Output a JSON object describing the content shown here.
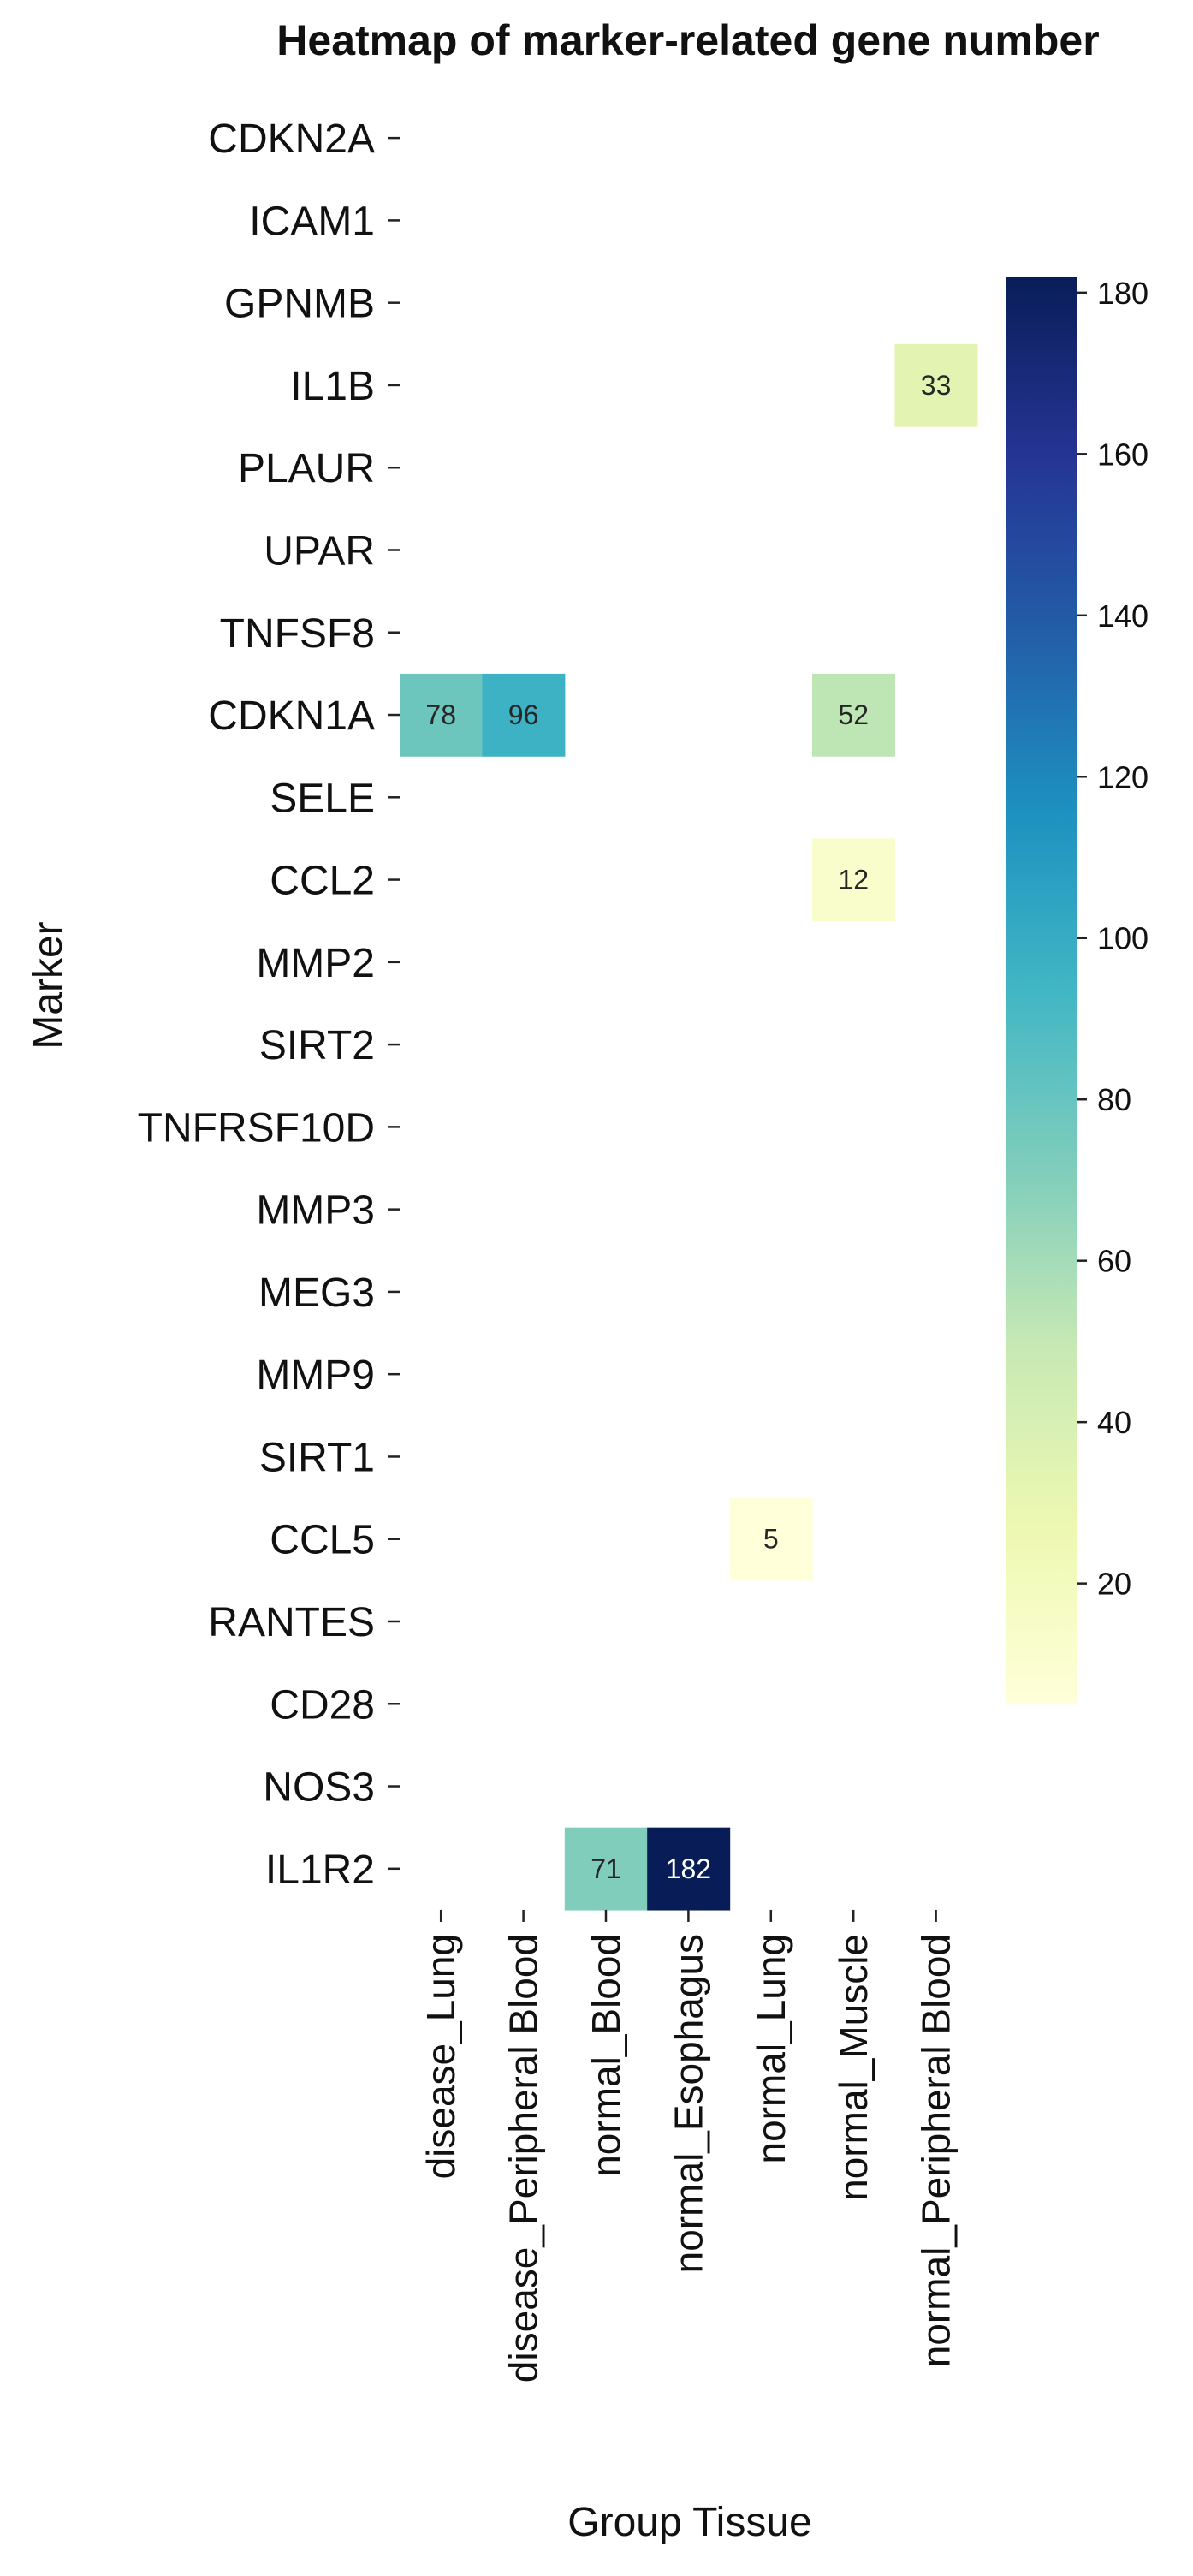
{
  "chart_data": {
    "type": "heatmap",
    "title": "Heatmap of marker-related gene number",
    "xlabel": "Group Tissue",
    "ylabel": "Marker",
    "x_categories": [
      "disease_Lung",
      "disease_Peripheral Blood",
      "normal_Blood",
      "normal_Esophagus",
      "normal_Lung",
      "normal_Muscle",
      "normal_Peripheral Blood"
    ],
    "y_categories": [
      "CDKN2A",
      "ICAM1",
      "GPNMB",
      "IL1B",
      "PLAUR",
      "UPAR",
      "TNFSF8",
      "CDKN1A",
      "SELE",
      "CCL2",
      "MMP2",
      "SIRT2",
      "TNFRSF10D",
      "MMP3",
      "MEG3",
      "MMP9",
      "SIRT1",
      "CCL5",
      "RANTES",
      "CD28",
      "NOS3",
      "IL1R2"
    ],
    "values": [
      [
        null,
        null,
        null,
        null,
        null,
        null,
        null
      ],
      [
        null,
        null,
        null,
        null,
        null,
        null,
        null
      ],
      [
        null,
        null,
        null,
        null,
        null,
        null,
        null
      ],
      [
        null,
        null,
        null,
        null,
        null,
        null,
        33
      ],
      [
        null,
        null,
        null,
        null,
        null,
        null,
        null
      ],
      [
        null,
        null,
        null,
        null,
        null,
        null,
        null
      ],
      [
        null,
        null,
        null,
        null,
        null,
        null,
        null
      ],
      [
        78,
        96,
        null,
        null,
        null,
        52,
        null
      ],
      [
        null,
        null,
        null,
        null,
        null,
        null,
        null
      ],
      [
        null,
        null,
        null,
        null,
        null,
        12,
        null
      ],
      [
        null,
        null,
        null,
        null,
        null,
        null,
        null
      ],
      [
        null,
        null,
        null,
        null,
        null,
        null,
        null
      ],
      [
        null,
        null,
        null,
        null,
        null,
        null,
        null
      ],
      [
        null,
        null,
        null,
        null,
        null,
        null,
        null
      ],
      [
        null,
        null,
        null,
        null,
        null,
        null,
        null
      ],
      [
        null,
        null,
        null,
        null,
        null,
        null,
        null
      ],
      [
        null,
        null,
        null,
        null,
        null,
        null,
        null
      ],
      [
        null,
        null,
        null,
        null,
        5,
        null,
        null
      ],
      [
        null,
        null,
        null,
        null,
        null,
        null,
        null
      ],
      [
        null,
        null,
        null,
        null,
        null,
        null,
        null
      ],
      [
        null,
        null,
        null,
        null,
        null,
        null,
        null
      ],
      [
        null,
        null,
        71,
        182,
        null,
        null,
        null
      ]
    ],
    "colormap": "YlGnBu",
    "colorbar": {
      "min": 5,
      "max": 182,
      "ticks": [
        20,
        40,
        60,
        80,
        100,
        120,
        140,
        160,
        180
      ]
    },
    "annotated": true,
    "grid": false
  }
}
